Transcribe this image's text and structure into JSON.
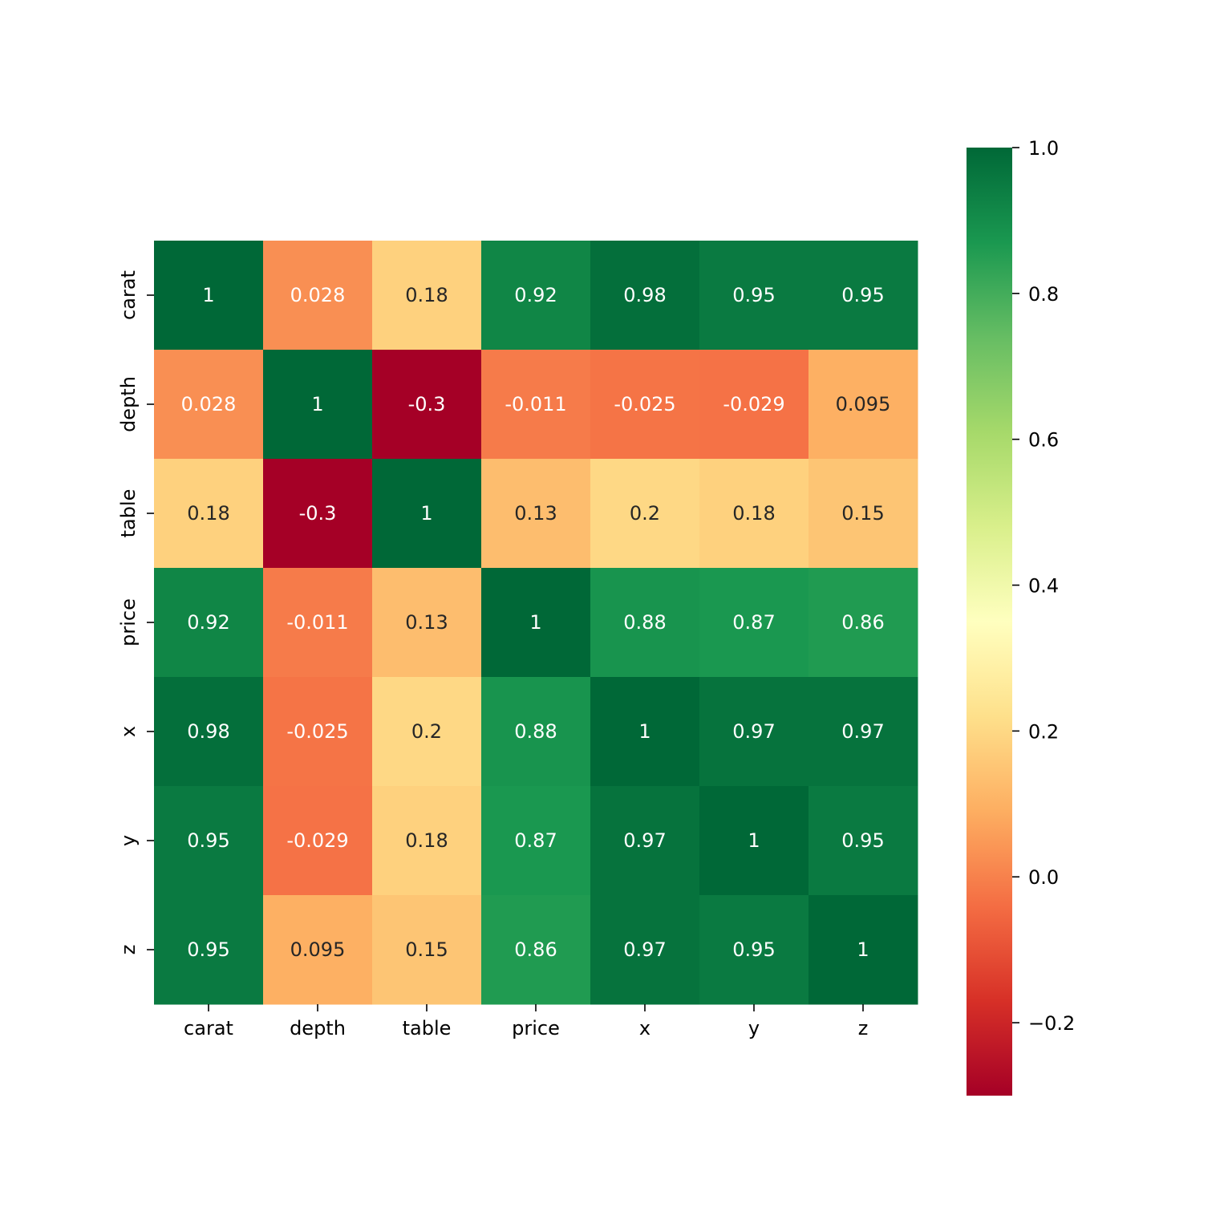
{
  "chart_data": {
    "type": "heatmap",
    "title": "",
    "xlabel": "",
    "ylabel": "",
    "colormap": "RdYlGn",
    "vmin": -0.3,
    "vmax": 1.0,
    "x_categories": [
      "carat",
      "depth",
      "table",
      "price",
      "x",
      "y",
      "z"
    ],
    "y_categories": [
      "carat",
      "depth",
      "table",
      "price",
      "x",
      "y",
      "z"
    ],
    "values": [
      [
        1,
        0.028,
        0.18,
        0.92,
        0.98,
        0.95,
        0.95
      ],
      [
        0.028,
        1,
        -0.3,
        -0.011,
        -0.025,
        -0.029,
        0.095
      ],
      [
        0.18,
        -0.3,
        1,
        0.13,
        0.2,
        0.18,
        0.15
      ],
      [
        0.92,
        -0.011,
        0.13,
        1,
        0.88,
        0.87,
        0.86
      ],
      [
        0.98,
        -0.025,
        0.2,
        0.88,
        1,
        0.97,
        0.97
      ],
      [
        0.95,
        -0.029,
        0.18,
        0.87,
        0.97,
        1,
        0.95
      ],
      [
        0.95,
        0.095,
        0.15,
        0.86,
        0.97,
        0.95,
        1
      ]
    ],
    "annotations": [
      [
        "1",
        "0.028",
        "0.18",
        "0.92",
        "0.98",
        "0.95",
        "0.95"
      ],
      [
        "0.028",
        "1",
        "-0.3",
        "-0.011",
        "-0.025",
        "-0.029",
        "0.095"
      ],
      [
        "0.18",
        "-0.3",
        "1",
        "0.13",
        "0.2",
        "0.18",
        "0.15"
      ],
      [
        "0.92",
        "-0.011",
        "0.13",
        "1",
        "0.88",
        "0.87",
        "0.86"
      ],
      [
        "0.98",
        "-0.025",
        "0.2",
        "0.88",
        "1",
        "0.97",
        "0.97"
      ],
      [
        "0.95",
        "-0.029",
        "0.18",
        "0.87",
        "0.97",
        "1",
        "0.95"
      ],
      [
        "0.95",
        "0.095",
        "0.15",
        "0.86",
        "0.97",
        "0.95",
        "1"
      ]
    ],
    "colorbar": {
      "ticks": [
        1.0,
        0.8,
        0.6,
        0.4,
        0.2,
        0.0,
        -0.2
      ],
      "tick_labels": [
        "1.0",
        "0.8",
        "0.6",
        "0.4",
        "0.2",
        "0.0",
        "−0.2"
      ]
    }
  }
}
